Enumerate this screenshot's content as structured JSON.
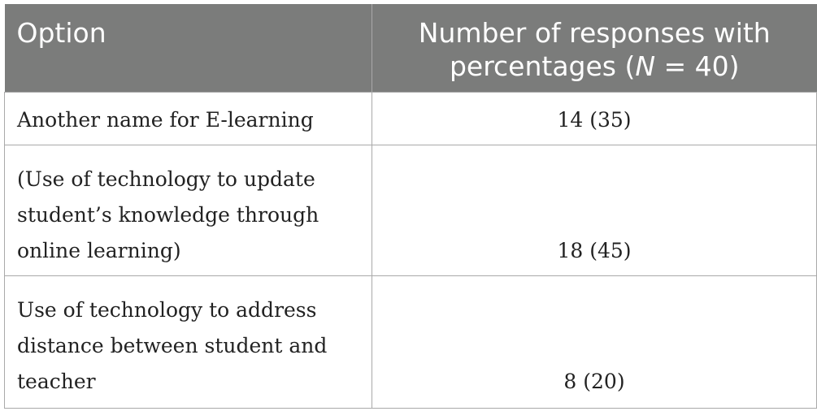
{
  "table": {
    "header": {
      "option": "Option",
      "count_line1": "Number of responses with",
      "count_line2_prefix": "percentages (",
      "count_line2_n": "N",
      "count_line2_suffix": " = 40)"
    },
    "rows": [
      {
        "option": "Another name for E-learning",
        "value": "14 (35)"
      },
      {
        "option": "(Use of technology to update student’s knowledge through online learning)",
        "value": "18 (45)"
      },
      {
        "option": "Use of technology to address distance between student and teacher",
        "value": "8 (20)"
      }
    ]
  }
}
